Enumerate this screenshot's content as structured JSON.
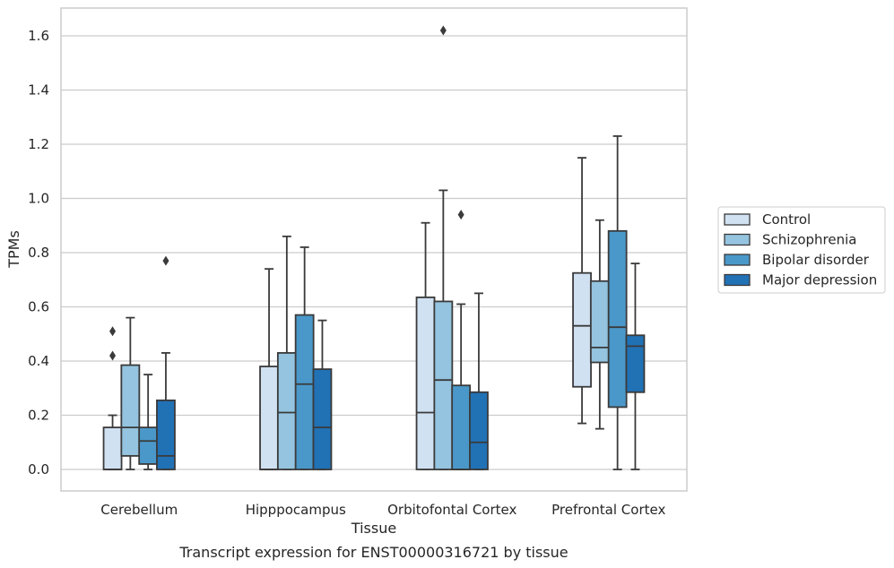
{
  "chart_data": {
    "type": "box",
    "xlabel": "Tissue",
    "ylabel": "TPMs",
    "caption": "Transcript expression for ENST00000316721 by tissue",
    "categories": [
      "Cerebellum",
      "Hipppocampus",
      "Orbitofontal Cortex",
      "Prefrontal Cortex"
    ],
    "ylim": [
      -0.08,
      1.7
    ],
    "yticks": [
      0.0,
      0.2,
      0.4,
      0.6,
      0.8,
      1.0,
      1.2,
      1.4,
      1.6
    ],
    "yticks_labels": [
      "0.0",
      "0.2",
      "0.4",
      "0.6",
      "0.8",
      "1.0",
      "1.2",
      "1.4",
      "1.6"
    ],
    "grid": "horizontal",
    "legend_position": "right",
    "series": [
      {
        "name": "Control",
        "color": "#d0e1f2",
        "boxes": [
          {
            "whislo": 0.0,
            "q1": 0.0,
            "med": 0.0,
            "q3": 0.155,
            "whishi": 0.2,
            "fliers": [
              0.51,
              0.42
            ]
          },
          {
            "whislo": 0.0,
            "q1": 0.0,
            "med": 0.0,
            "q3": 0.38,
            "whishi": 0.74,
            "fliers": []
          },
          {
            "whislo": 0.0,
            "q1": 0.0,
            "med": 0.21,
            "q3": 0.635,
            "whishi": 0.91,
            "fliers": []
          },
          {
            "whislo": 0.17,
            "q1": 0.305,
            "med": 0.53,
            "q3": 0.725,
            "whishi": 1.15,
            "fliers": []
          }
        ]
      },
      {
        "name": "Schizophrenia",
        "color": "#94c4df",
        "boxes": [
          {
            "whislo": 0.0,
            "q1": 0.05,
            "med": 0.155,
            "q3": 0.385,
            "whishi": 0.56,
            "fliers": []
          },
          {
            "whislo": 0.0,
            "q1": 0.0,
            "med": 0.21,
            "q3": 0.43,
            "whishi": 0.86,
            "fliers": []
          },
          {
            "whislo": 0.0,
            "q1": 0.0,
            "med": 0.33,
            "q3": 0.62,
            "whishi": 1.03,
            "fliers": [
              1.62
            ]
          },
          {
            "whislo": 0.15,
            "q1": 0.395,
            "med": 0.45,
            "q3": 0.695,
            "whishi": 0.92,
            "fliers": []
          }
        ]
      },
      {
        "name": "Bipolar disorder",
        "color": "#4a98c9",
        "boxes": [
          {
            "whislo": 0.0,
            "q1": 0.02,
            "med": 0.105,
            "q3": 0.155,
            "whishi": 0.35,
            "fliers": []
          },
          {
            "whislo": 0.0,
            "q1": 0.0,
            "med": 0.315,
            "q3": 0.57,
            "whishi": 0.82,
            "fliers": []
          },
          {
            "whislo": 0.0,
            "q1": 0.0,
            "med": 0.0,
            "q3": 0.31,
            "whishi": 0.61,
            "fliers": [
              0.94
            ]
          },
          {
            "whislo": 0.0,
            "q1": 0.23,
            "med": 0.525,
            "q3": 0.88,
            "whishi": 1.23,
            "fliers": []
          }
        ]
      },
      {
        "name": "Major depression",
        "color": "#2171b5",
        "boxes": [
          {
            "whislo": 0.0,
            "q1": 0.0,
            "med": 0.05,
            "q3": 0.255,
            "whishi": 0.43,
            "fliers": [
              0.77
            ]
          },
          {
            "whislo": 0.0,
            "q1": 0.0,
            "med": 0.155,
            "q3": 0.37,
            "whishi": 0.55,
            "fliers": []
          },
          {
            "whislo": 0.0,
            "q1": 0.0,
            "med": 0.1,
            "q3": 0.285,
            "whishi": 0.65,
            "fliers": []
          },
          {
            "whislo": 0.0,
            "q1": 0.285,
            "med": 0.455,
            "q3": 0.495,
            "whishi": 0.76,
            "fliers": []
          }
        ]
      }
    ]
  }
}
